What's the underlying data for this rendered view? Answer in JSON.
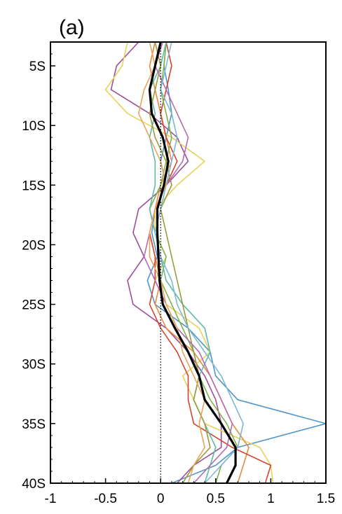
{
  "chart_data": {
    "type": "line",
    "panel_label": "(a)",
    "title": "",
    "xlabel": "",
    "ylabel": "",
    "xlim": [
      -1,
      1.5
    ],
    "ylim": [
      -40,
      -3
    ],
    "x_ticks": [
      -1,
      -0.5,
      0,
      0.5,
      1,
      1.5
    ],
    "x_tick_labels": [
      "-1",
      "-0.5",
      "0",
      "0.5",
      "1",
      "1.5"
    ],
    "y_ticks": [
      -5,
      -10,
      -15,
      -20,
      -25,
      -30,
      -35,
      -40
    ],
    "y_tick_labels": [
      "5S",
      "10S",
      "15S",
      "20S",
      "25S",
      "30S",
      "35S",
      "40S"
    ],
    "grid": false,
    "legend": "none",
    "zero_line": {
      "x": 0,
      "style": "dashed",
      "color": "#000000"
    },
    "mean": {
      "color": "#000000",
      "y": [
        -3,
        -5,
        -7,
        -9,
        -11,
        -13,
        -15,
        -17,
        -19,
        -21,
        -23,
        -25,
        -27,
        -29,
        -31,
        -33,
        -35,
        -37,
        -38.5,
        -40
      ],
      "x": [
        0.0,
        -0.05,
        -0.1,
        -0.08,
        0.02,
        0.07,
        0.03,
        -0.03,
        -0.03,
        -0.02,
        -0.01,
        0.02,
        0.13,
        0.25,
        0.35,
        0.4,
        0.55,
        0.68,
        0.68,
        0.6
      ]
    },
    "members": [
      {
        "color": "#4f95c6",
        "y": [
          -3,
          -5,
          -7,
          -9,
          -11,
          -13,
          -15,
          -17,
          -19,
          -21,
          -23,
          -25,
          -27,
          -29,
          -31,
          -33,
          -35,
          -37,
          -38.5,
          -40
        ],
        "x": [
          0.05,
          0.03,
          0.07,
          0.1,
          0.05,
          0.0,
          0.05,
          -0.05,
          -0.08,
          -0.03,
          -0.12,
          -0.05,
          0.25,
          0.45,
          0.5,
          0.7,
          1.5,
          0.7,
          0.5,
          0.1
        ]
      },
      {
        "color": "#9b4f9a",
        "y": [
          -3,
          -5,
          -7,
          -9,
          -11,
          -13,
          -15,
          -17,
          -19,
          -21,
          -23,
          -25,
          -27,
          -29,
          -31,
          -33,
          -35,
          -37,
          -38.5,
          -40
        ],
        "x": [
          -0.2,
          -0.4,
          -0.45,
          -0.1,
          0.15,
          0.25,
          0.05,
          -0.2,
          -0.25,
          -0.15,
          -0.3,
          -0.25,
          0.05,
          0.25,
          0.4,
          0.5,
          0.55,
          0.55,
          0.3,
          0.15
        ]
      },
      {
        "color": "#e6d25a",
        "y": [
          -3,
          -5,
          -7,
          -9,
          -11,
          -13,
          -15,
          -17,
          -19,
          -21,
          -23,
          -25,
          -27,
          -29,
          -31,
          -33,
          -35,
          -37,
          -38.5,
          -40
        ],
        "x": [
          -0.3,
          -0.35,
          -0.5,
          -0.3,
          0.1,
          0.4,
          0.15,
          -0.05,
          -0.05,
          0.05,
          -0.05,
          0.05,
          0.35,
          0.45,
          0.2,
          0.3,
          0.4,
          0.9,
          1.0,
          1.02
        ]
      },
      {
        "color": "#e88a3e",
        "y": [
          -3,
          -5,
          -7,
          -9,
          -11,
          -13,
          -15,
          -17,
          -19,
          -21,
          -23,
          -25,
          -27,
          -29,
          -31,
          -33,
          -35,
          -37,
          -38.5,
          -40
        ],
        "x": [
          -0.05,
          -0.1,
          -0.05,
          0.0,
          0.05,
          0.1,
          0.0,
          -0.05,
          -0.1,
          -0.05,
          0.0,
          -0.05,
          0.05,
          0.3,
          0.45,
          0.55,
          0.65,
          0.8,
          0.75,
          0.7
        ]
      },
      {
        "color": "#d2452f",
        "y": [
          -3,
          -5,
          -7,
          -9,
          -11,
          -13,
          -15,
          -17,
          -19,
          -21,
          -23,
          -25,
          -27,
          -29,
          -31,
          -33,
          -35,
          -37,
          -38.5,
          -40
        ],
        "x": [
          0.05,
          0.1,
          0.05,
          0.0,
          0.05,
          0.15,
          0.05,
          -0.05,
          -0.1,
          -0.05,
          -0.05,
          -0.1,
          0.0,
          0.15,
          0.25,
          0.25,
          0.3,
          0.65,
          1.0,
          0.95
        ]
      },
      {
        "color": "#7fb34a",
        "y": [
          -3,
          -5,
          -7,
          -9,
          -11,
          -13,
          -15,
          -17,
          -19,
          -21,
          -23,
          -25,
          -27,
          -29,
          -31,
          -33,
          -35,
          -37,
          -38.5,
          -40
        ],
        "x": [
          0.05,
          0.03,
          0.0,
          0.05,
          0.1,
          0.05,
          0.0,
          -0.1,
          -0.05,
          0.05,
          0.0,
          0.1,
          0.2,
          0.3,
          0.35,
          0.45,
          0.6,
          0.7,
          0.55,
          0.5
        ]
      },
      {
        "color": "#5fb8a8",
        "y": [
          -3,
          -5,
          -7,
          -9,
          -11,
          -13,
          -15,
          -17,
          -19,
          -21,
          -23,
          -25,
          -27,
          -29,
          -31,
          -33,
          -35,
          -37,
          -38.5,
          -40
        ],
        "x": [
          0.05,
          0.0,
          -0.1,
          -0.05,
          -0.1,
          -0.05,
          -0.05,
          -0.1,
          -0.05,
          0.0,
          0.05,
          0.2,
          0.4,
          0.45,
          0.35,
          0.3,
          0.4,
          0.5,
          0.45,
          0.4
        ]
      },
      {
        "color": "#9a9c3a",
        "y": [
          -3,
          -5,
          -7,
          -9,
          -11,
          -13,
          -15,
          -17,
          -19,
          -21,
          -23,
          -25,
          -27,
          -29,
          -31,
          -33,
          -35,
          -37,
          -38.5,
          -40
        ],
        "x": [
          -0.05,
          0.0,
          -0.05,
          -0.1,
          -0.05,
          0.05,
          0.1,
          0.0,
          0.05,
          0.1,
          0.15,
          0.2,
          0.25,
          0.3,
          0.35,
          0.3,
          0.4,
          0.45,
          0.3,
          0.2
        ]
      },
      {
        "color": "#b36cb0",
        "y": [
          -3,
          -5,
          -7,
          -9,
          -11,
          -13,
          -15,
          -17,
          -19,
          -21,
          -23,
          -25,
          -27,
          -29,
          -31,
          -33,
          -35,
          -37,
          -38.5,
          -40
        ],
        "x": [
          0.02,
          -0.05,
          0.05,
          0.15,
          0.25,
          0.2,
          0.05,
          -0.05,
          -0.1,
          -0.15,
          -0.05,
          0.05,
          0.15,
          0.35,
          0.45,
          0.55,
          0.65,
          0.6,
          0.45,
          0.3
        ]
      },
      {
        "color": "#7db7d8",
        "y": [
          -3,
          -5,
          -7,
          -9,
          -11,
          -13,
          -15,
          -17,
          -19,
          -21,
          -23,
          -25,
          -27,
          -29,
          -31,
          -33,
          -35,
          -37,
          -38.5,
          -40
        ],
        "x": [
          0.1,
          0.05,
          0.0,
          0.1,
          0.15,
          0.1,
          0.05,
          0.0,
          -0.05,
          0.0,
          0.1,
          0.15,
          0.25,
          0.4,
          0.55,
          0.65,
          0.75,
          0.7,
          0.55,
          0.4
        ]
      },
      {
        "color": "#e9a35a",
        "y": [
          -3,
          -5,
          -7,
          -9,
          -11,
          -13,
          -15,
          -17,
          -19,
          -21,
          -23,
          -25,
          -27,
          -29,
          -31,
          -33,
          -35,
          -37,
          -38.5,
          -40
        ],
        "x": [
          -0.1,
          -0.05,
          -0.15,
          -0.2,
          -0.1,
          0.0,
          0.05,
          -0.05,
          -0.1,
          -0.1,
          0.0,
          0.05,
          0.15,
          0.2,
          0.3,
          0.4,
          0.35,
          0.4,
          0.3,
          0.25
        ]
      }
    ]
  }
}
